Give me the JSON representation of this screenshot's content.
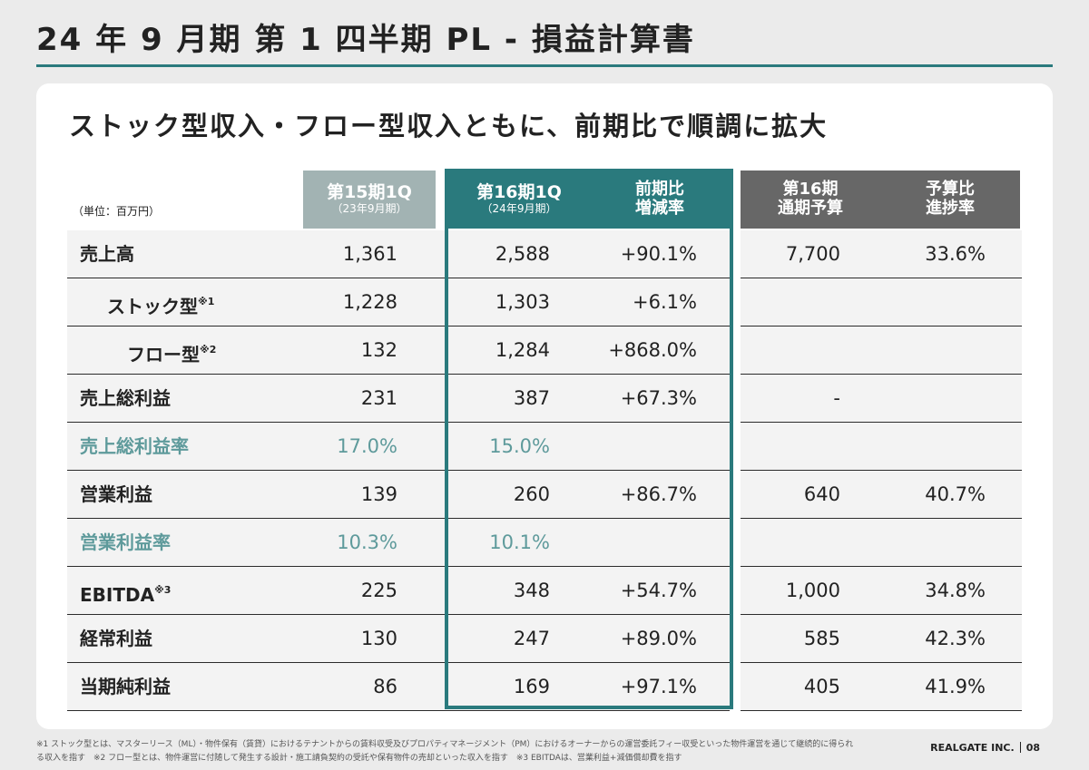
{
  "title": "24 年 9 月期 第 1 四半期 PL - 損益計算書",
  "headline": "ストック型収入・フロー型収入ともに、前期比で順調に拡大",
  "unit": "（単位：百万円）",
  "accent_color": "#2a7a7d",
  "columns": {
    "prev": {
      "l1": "第15期1Q",
      "l2": "（23年9月期）"
    },
    "cur": {
      "l1": "第16期1Q",
      "l2": "（24年9月期）"
    },
    "yoy": {
      "l1": "前期比",
      "l2": "増減率"
    },
    "budget": {
      "l1": "第16期",
      "l2": "通期予算"
    },
    "progress": {
      "l1": "予算比",
      "l2": "進捗率"
    }
  },
  "rows": [
    {
      "label": "売上高",
      "note": "",
      "prev": "1,361",
      "cur": "2,588",
      "yoy": "+90.1%",
      "budget": "7,700",
      "progress": "33.6%"
    },
    {
      "label": "ストック型",
      "note": "※1",
      "prev": "1,228",
      "cur": "1,303",
      "yoy": "+6.1%",
      "budget": "",
      "progress": ""
    },
    {
      "label": "フロー型",
      "note": "※2",
      "prev": "132",
      "cur": "1,284",
      "yoy": "+868.0%",
      "budget": "",
      "progress": ""
    },
    {
      "label": "売上総利益",
      "note": "",
      "prev": "231",
      "cur": "387",
      "yoy": "+67.3%",
      "budget": "-",
      "progress": ""
    },
    {
      "label": "売上総利益率",
      "note": "",
      "prev": "17.0%",
      "cur": "15.0%",
      "yoy": "",
      "budget": "",
      "progress": ""
    },
    {
      "label": "営業利益",
      "note": "",
      "prev": "139",
      "cur": "260",
      "yoy": "+86.7%",
      "budget": "640",
      "progress": "40.7%"
    },
    {
      "label": "営業利益率",
      "note": "",
      "prev": "10.3%",
      "cur": "10.1%",
      "yoy": "",
      "budget": "",
      "progress": ""
    },
    {
      "label": "EBITDA",
      "note": "※3",
      "prev": "225",
      "cur": "348",
      "yoy": "+54.7%",
      "budget": "1,000",
      "progress": "34.8%"
    },
    {
      "label": "経常利益",
      "note": "",
      "prev": "130",
      "cur": "247",
      "yoy": "+89.0%",
      "budget": "585",
      "progress": "42.3%"
    },
    {
      "label": "当期純利益",
      "note": "",
      "prev": "86",
      "cur": "169",
      "yoy": "+97.1%",
      "budget": "405",
      "progress": "41.9%"
    }
  ],
  "footnote_line1": "※1 ストック型とは、マスターリース（ML）・物件保有（賃貸）におけるテナントからの賃料収受及びプロパティマネージメント（PM）におけるオーナーからの運営委託フィー収受といった物件運営を通じて継続的に得られ",
  "footnote_line2": "る収入を指す　※2 フロー型とは、物件運営に付随して発生する設計・施工請負契約の受託や保有物件の売却といった収入を指す　※3 EBITDAは、営業利益+減価償却費を指す",
  "company": "REALGATE INC.",
  "page_number": "08"
}
